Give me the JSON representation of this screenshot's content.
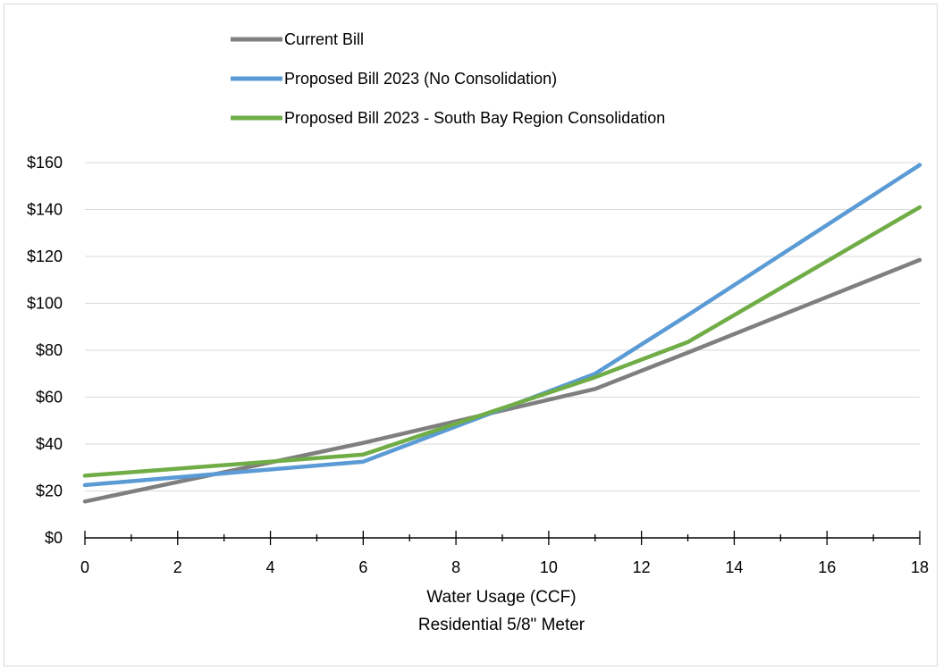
{
  "chart_data": {
    "type": "line",
    "title": "",
    "xlabel": "Water Usage (CCF)",
    "xlabel2": "Residential 5/8\" Meter",
    "ylabel": "",
    "xlim": [
      0,
      18
    ],
    "ylim": [
      0,
      160
    ],
    "x_ticks": [
      "0",
      "2",
      "4",
      "6",
      "8",
      "10",
      "12",
      "14",
      "16",
      "18"
    ],
    "y_ticks": [
      "$0",
      "$20",
      "$40",
      "$60",
      "$80",
      "$100",
      "$120",
      "$140",
      "$160"
    ],
    "grid": "horizontal",
    "legend_position": "top",
    "series": [
      {
        "name": "Current Bill",
        "color": "#7f7f7f",
        "points": [
          [
            0,
            15.5
          ],
          [
            6,
            40.5
          ],
          [
            11,
            63.5
          ],
          [
            13,
            79
          ],
          [
            18,
            118.5
          ]
        ]
      },
      {
        "name": "Proposed Bill 2023 (No Consolidation)",
        "color": "#5b9bd5",
        "points": [
          [
            0,
            22.5
          ],
          [
            6,
            32.5
          ],
          [
            11,
            70
          ],
          [
            13,
            95
          ],
          [
            18,
            159
          ]
        ]
      },
      {
        "name": "Proposed Bill 2023 - South Bay Region Consolidation",
        "color": "#70ad47",
        "points": [
          [
            0,
            26.5
          ],
          [
            6,
            35.5
          ],
          [
            11,
            68.5
          ],
          [
            13,
            83.5
          ],
          [
            18,
            141
          ]
        ]
      }
    ]
  }
}
